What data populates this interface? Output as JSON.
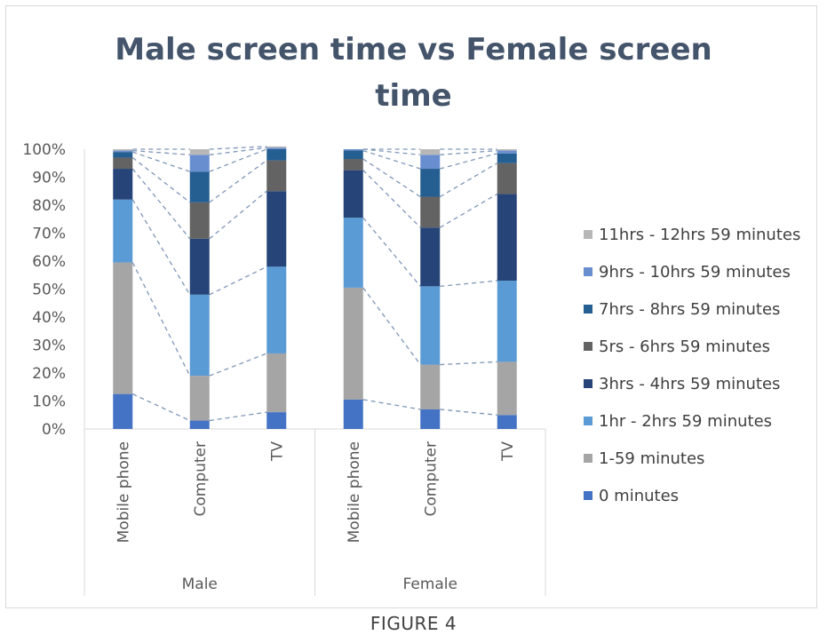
{
  "title_lines": [
    "Male screen time vs Female screen",
    "time"
  ],
  "caption": "FIGURE 4",
  "chart_data": {
    "type": "bar",
    "stacked": true,
    "percent_stacked": true,
    "title": "Male screen time vs Female screen time",
    "groups": [
      {
        "name": "Male",
        "categories": [
          "Mobile phone",
          "Computer",
          "TV"
        ]
      },
      {
        "name": "Female",
        "categories": [
          "Mobile phone",
          "Computer",
          "TV"
        ]
      }
    ],
    "categories": [
      "Mobile phone",
      "Computer",
      "TV",
      "Mobile phone",
      "Computer",
      "TV"
    ],
    "ylim": [
      0,
      100
    ],
    "yticks": [
      "0%",
      "10%",
      "20%",
      "30%",
      "40%",
      "50%",
      "60%",
      "70%",
      "80%",
      "90%",
      "100%"
    ],
    "grid": false,
    "series_lines": true,
    "legend_position": "right",
    "series": [
      {
        "name": "0 minutes",
        "color": "#4472c4",
        "values": [
          12.5,
          3,
          6,
          10.5,
          7,
          5
        ]
      },
      {
        "name": "1-59 minutes",
        "color": "#a5a5a5",
        "values": [
          47,
          16,
          21,
          40,
          16,
          19
        ]
      },
      {
        "name": "1hr - 2hrs 59 minutes",
        "color": "#5b9bd5",
        "values": [
          22.5,
          29,
          31,
          25,
          28,
          29
        ]
      },
      {
        "name": "3hrs - 4hrs 59 minutes",
        "color": "#264478",
        "values": [
          11,
          20,
          27,
          17,
          21,
          31
        ]
      },
      {
        "name": "5rs - 6hrs 59 minutes",
        "color": "#636363",
        "values": [
          4,
          13,
          11,
          4,
          11,
          11
        ]
      },
      {
        "name": "7hrs - 8hrs 59 minutes",
        "color": "#255e91",
        "values": [
          2,
          11,
          4,
          3,
          10,
          3.5
        ]
      },
      {
        "name": "9hrs - 10hrs 59 minutes",
        "color": "#698ed0",
        "values": [
          0.5,
          6,
          0.5,
          0.5,
          5,
          1
        ]
      },
      {
        "name": "11hrs - 12hrs 59 minutes",
        "color": "#b7b7b7",
        "values": [
          0.5,
          2,
          0.5,
          0,
          2,
          0.5
        ]
      }
    ]
  }
}
